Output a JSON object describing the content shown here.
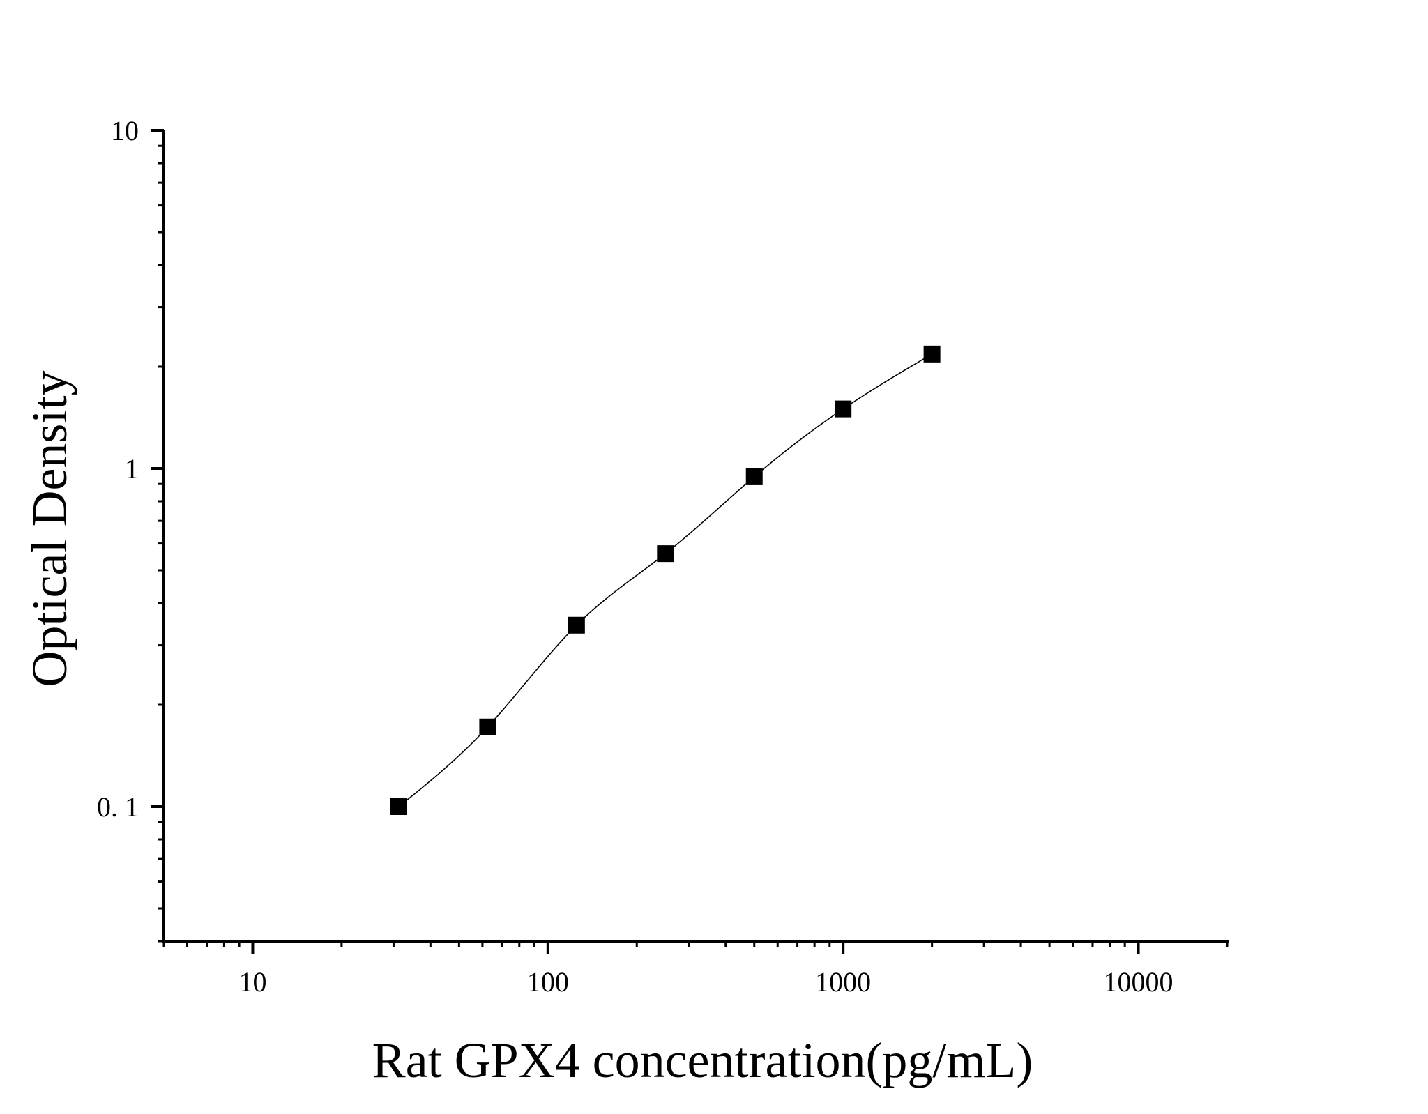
{
  "chart_data": {
    "type": "scatter",
    "title": "",
    "xlabel": "Rat GPX4 concentration(pg/mL)",
    "ylabel": "Optical Density",
    "xscale": "log",
    "yscale": "log",
    "xlim": [
      5,
      20000
    ],
    "ylim": [
      0.04,
      10
    ],
    "grid": false,
    "x_ticks": [
      {
        "value": 10,
        "label": "10"
      },
      {
        "value": 100,
        "label": "100"
      },
      {
        "value": 1000,
        "label": "1000"
      },
      {
        "value": 10000,
        "label": "10000"
      }
    ],
    "y_ticks": [
      {
        "value": 0.1,
        "label": "0. 1"
      },
      {
        "value": 1,
        "label": "1"
      },
      {
        "value": 10,
        "label": "10"
      }
    ],
    "series": [
      {
        "marker": "square",
        "fit_line": true,
        "color": "#000000",
        "x": [
          31.25,
          62.5,
          125,
          250,
          500,
          1000,
          2000
        ],
        "y": [
          0.1,
          0.172,
          0.344,
          0.56,
          0.945,
          1.5,
          2.18
        ]
      }
    ]
  }
}
